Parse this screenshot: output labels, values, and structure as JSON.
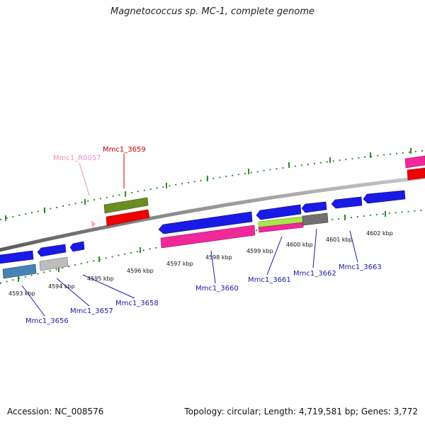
{
  "title": "Magnetococcus sp. MC-1, complete genome",
  "footer": {
    "accession": "Accession: NC_008576",
    "topology": "Topology: circular; Length: 4,719,581 bp; Genes: 3,772"
  },
  "colors": {
    "backbone": "#8c8c8c",
    "tick_marks": "#2e8b2e",
    "gene_label_blue": "#1a1aa6",
    "gene_label_red": "#cc0000",
    "gene_label_pink": "#f08cc0",
    "cds_blue": "#1a1ae6",
    "cds_pink": "#f0289a",
    "cds_red": "#ee0000",
    "cds_olive": "#6b8e23",
    "cds_steel": "#4682b4",
    "cds_silver": "#bdbdbd",
    "cds_gray": "#707070",
    "cds_lime": "#a8e64a"
  },
  "position_ticks": [
    {
      "id": "kbp-4593",
      "label": "4593 kbp"
    },
    {
      "id": "kbp-4594",
      "label": "4594 kbp"
    },
    {
      "id": "kbp-4595",
      "label": "4595 kbp"
    },
    {
      "id": "kbp-4596",
      "label": "4596 kbp"
    },
    {
      "id": "kbp-4597",
      "label": "4597 kbp"
    },
    {
      "id": "kbp-4598",
      "label": "4598 kbp"
    },
    {
      "id": "kbp-4599",
      "label": "4599 kbp"
    },
    {
      "id": "kbp-4600",
      "label": "4600 kbp"
    },
    {
      "id": "kbp-4601",
      "label": "4601 kbp"
    },
    {
      "id": "kbp-4602",
      "label": "4602 kbp"
    }
  ],
  "gene_labels": [
    {
      "id": "mmc1-r0057",
      "label": "Mmc1_R0057",
      "color": "#f08cc0"
    },
    {
      "id": "mmc1-3659",
      "label": "Mmc1_3659",
      "color": "#cc0000"
    },
    {
      "id": "mmc1-3656",
      "label": "Mmc1_3656",
      "color": "#1a1aa6"
    },
    {
      "id": "mmc1-3657",
      "label": "Mmc1_3657",
      "color": "#1a1aa6"
    },
    {
      "id": "mmc1-3658",
      "label": "Mmc1_3658",
      "color": "#1a1aa6"
    },
    {
      "id": "mmc1-3660",
      "label": "Mmc1_3660",
      "color": "#1a1aa6"
    },
    {
      "id": "mmc1-3661",
      "label": "Mmc1_3661",
      "color": "#1a1aa6"
    },
    {
      "id": "mmc1-3662",
      "label": "Mmc1_3662",
      "color": "#1a1aa6"
    },
    {
      "id": "mmc1-3663",
      "label": "Mmc1_3663",
      "color": "#1a1aa6"
    }
  ]
}
